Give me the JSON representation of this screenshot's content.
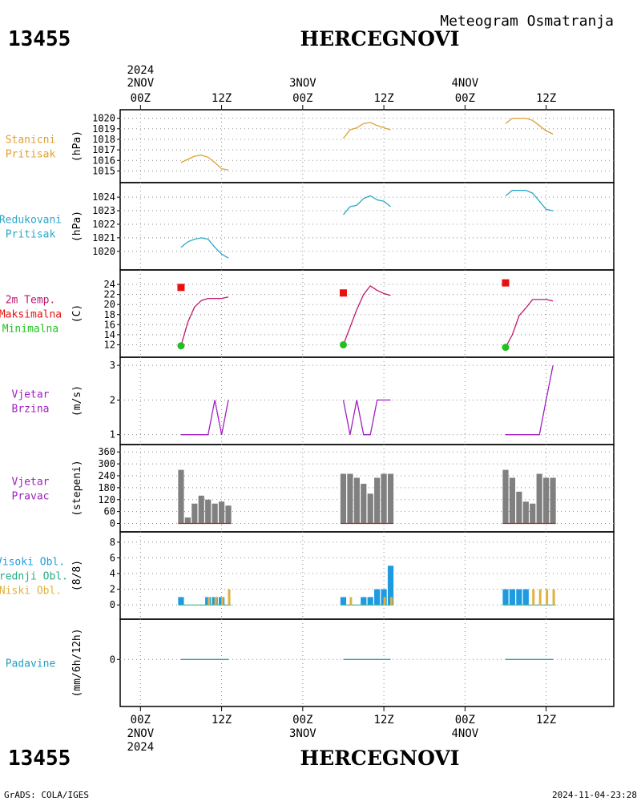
{
  "header": {
    "station_id": "13455",
    "station_name": "HERCEGNOVI",
    "subtitle": "Meteogram Osmatranja"
  },
  "top_axis": {
    "year": "2024",
    "ticks": [
      {
        "top": "2NOV",
        "bottom": "00Z",
        "t": 0
      },
      {
        "top": "",
        "bottom": "12Z",
        "t": 12
      },
      {
        "top": "3NOV",
        "bottom": "00Z",
        "t": 24
      },
      {
        "top": "",
        "bottom": "12Z",
        "t": 36
      },
      {
        "top": "4NOV",
        "bottom": "00Z",
        "t": 48
      },
      {
        "top": "",
        "bottom": "12Z",
        "t": 60
      }
    ]
  },
  "bottom_axis": {
    "year": "2024",
    "ticks": [
      {
        "top": "00Z",
        "bottom": "2NOV",
        "t": 0
      },
      {
        "top": "12Z",
        "bottom": "",
        "t": 12
      },
      {
        "top": "00Z",
        "bottom": "3NOV",
        "t": 24
      },
      {
        "top": "12Z",
        "bottom": "",
        "t": 36
      },
      {
        "top": "00Z",
        "bottom": "4NOV",
        "t": 48
      },
      {
        "top": "12Z",
        "bottom": "",
        "t": 60
      }
    ]
  },
  "footer": {
    "left": "GrADS: COLA/IGES",
    "right": "2024-11-04-23:28"
  },
  "colors": {
    "station_pressure": "#e0a030",
    "reduced_pressure": "#2aa8c8",
    "temp_line": "#c0186e",
    "temp_max": "#e81010",
    "temp_min": "#20c020",
    "wind": "#a020c0",
    "wind_dir_bars": "#808080",
    "wind_dir_baseline": "#c02020",
    "cloud_high": "#1e9be0",
    "cloud_mid": "#20b080",
    "cloud_low": "#e0b040",
    "precip": "#20a0c0"
  },
  "chart_data": {
    "type": "line",
    "x_unit": "hours since 2NOV 00Z",
    "xlim": [
      -3,
      70
    ],
    "panels": [
      {
        "id": "station_pressure",
        "labels": [
          {
            "text": "Stanicni",
            "color": "#e0a030"
          },
          {
            "text": "Pritisak",
            "color": "#e0a030"
          }
        ],
        "ylabel": "(hPa)",
        "ylim": [
          1014.5,
          1020.2
        ],
        "yticks": [
          1015,
          1016,
          1017,
          1018,
          1019,
          1020
        ],
        "series": [
          {
            "kind": "line",
            "x": [
              6,
              7,
              8,
              9,
              10,
              11,
              12,
              13
            ],
            "y": [
              1015.8,
              1016.1,
              1016.4,
              1016.5,
              1016.3,
              1015.8,
              1015.2,
              1015.1
            ]
          },
          {
            "kind": "line",
            "x": [
              30,
              31,
              32,
              33,
              34,
              35,
              36,
              37
            ],
            "y": [
              1018.1,
              1018.9,
              1019.1,
              1019.5,
              1019.6,
              1019.3,
              1019.1,
              1018.9
            ]
          },
          {
            "kind": "line",
            "x": [
              54,
              55,
              56,
              57,
              58,
              59,
              60,
              61
            ],
            "y": [
              1019.5,
              1020.0,
              1020.0,
              1020.0,
              1019.8,
              1019.3,
              1018.8,
              1018.5
            ]
          }
        ]
      },
      {
        "id": "reduced_pressure",
        "labels": [
          {
            "text": "Redukovani",
            "color": "#2aa8c8"
          },
          {
            "text": "Pritisak",
            "color": "#2aa8c8"
          }
        ],
        "ylabel": "(hPa)",
        "ylim": [
          1019.1,
          1024.6
        ],
        "yticks": [
          1020,
          1021,
          1022,
          1023,
          1024
        ],
        "series": [
          {
            "kind": "line",
            "x": [
              6,
              7,
              8,
              9,
              10,
              11,
              12,
              13
            ],
            "y": [
              1020.3,
              1020.7,
              1020.9,
              1021.0,
              1020.9,
              1020.3,
              1019.8,
              1019.5
            ]
          },
          {
            "kind": "line",
            "x": [
              30,
              31,
              32,
              33,
              34,
              35,
              36,
              37
            ],
            "y": [
              1022.7,
              1023.3,
              1023.4,
              1023.9,
              1024.1,
              1023.8,
              1023.7,
              1023.3
            ]
          },
          {
            "kind": "line",
            "x": [
              54,
              55,
              56,
              57,
              58,
              59,
              60,
              61
            ],
            "y": [
              1024.1,
              1024.5,
              1024.5,
              1024.5,
              1024.3,
              1023.7,
              1023.1,
              1023.0
            ]
          }
        ]
      },
      {
        "id": "temperature",
        "labels": [
          {
            "text": "2m Temp.",
            "color": "#c0186e"
          },
          {
            "text": "Maksimalna",
            "color": "#e81010"
          },
          {
            "text": "Minimalna",
            "color": "#20c020"
          }
        ],
        "ylabel": "(C)",
        "ylim": [
          10.8,
          25.6
        ],
        "yticks": [
          12,
          14,
          16,
          18,
          20,
          22,
          24
        ],
        "series": [
          {
            "kind": "line",
            "x": [
              6,
              7,
              8,
              9,
              10,
              11,
              12,
              13
            ],
            "y": [
              11.8,
              16.5,
              19.5,
              20.8,
              21.2,
              21.2,
              21.2,
              21.5
            ]
          },
          {
            "kind": "line",
            "x": [
              30,
              31,
              32,
              33,
              34,
              35,
              36,
              37
            ],
            "y": [
              12.0,
              15.5,
              19.0,
              22.0,
              23.7,
              22.8,
              22.2,
              21.8
            ]
          },
          {
            "kind": "line",
            "x": [
              54,
              55,
              56,
              57,
              58,
              59,
              60,
              61
            ],
            "y": [
              11.5,
              14.0,
              17.8,
              19.3,
              21.0,
              21.0,
              21.0,
              20.7
            ]
          },
          {
            "kind": "max",
            "x": [
              6,
              30,
              54
            ],
            "y": [
              23.4,
              22.3,
              24.3
            ]
          },
          {
            "kind": "min",
            "x": [
              6,
              30,
              54
            ],
            "y": [
              11.8,
              12.0,
              11.5
            ]
          }
        ]
      },
      {
        "id": "wind_speed",
        "labels": [
          {
            "text": "Vjetar",
            "color": "#a020c0"
          },
          {
            "text": "Brzina",
            "color": "#a020c0"
          }
        ],
        "ylabel": "(m/s)",
        "ylim": [
          0.9,
          3.05
        ],
        "yticks": [
          1,
          2,
          3
        ],
        "series": [
          {
            "kind": "line",
            "x": [
              6,
              7,
              8,
              9,
              10,
              11,
              12,
              13
            ],
            "y": [
              1,
              1,
              1,
              1,
              1,
              2,
              1,
              2
            ]
          },
          {
            "kind": "line",
            "x": [
              30,
              31,
              32,
              33,
              34,
              35,
              36,
              37
            ],
            "y": [
              2,
              1,
              2,
              1,
              1,
              2,
              2,
              2
            ]
          },
          {
            "kind": "line",
            "x": [
              54,
              55,
              56,
              57,
              58,
              59,
              60,
              61
            ],
            "y": [
              1,
              1,
              1,
              1,
              1,
              1,
              2,
              3
            ]
          }
        ]
      },
      {
        "id": "wind_direction",
        "labels": [
          {
            "text": "Vjetar",
            "color": "#a020c0"
          },
          {
            "text": "Pravac",
            "color": "#a020c0"
          }
        ],
        "ylabel": "(stepeni)",
        "ylim": [
          -10,
          365
        ],
        "yticks": [
          0,
          60,
          120,
          180,
          240,
          300,
          360
        ],
        "series": [
          {
            "kind": "bars",
            "x": [
              6,
              7,
              8,
              9,
              10,
              11,
              12,
              13
            ],
            "y": [
              270,
              30,
              100,
              140,
              120,
              100,
              110,
              90
            ]
          },
          {
            "kind": "bars",
            "x": [
              30,
              31,
              32,
              33,
              34,
              35,
              36,
              37
            ],
            "y": [
              250,
              250,
              230,
              200,
              150,
              230,
              250,
              250
            ]
          },
          {
            "kind": "bars",
            "x": [
              54,
              55,
              56,
              57,
              58,
              59,
              60,
              61
            ],
            "y": [
              270,
              230,
              160,
              110,
              100,
              250,
              230,
              230
            ]
          }
        ]
      },
      {
        "id": "clouds",
        "labels": [
          {
            "text": "Visoki Obl.",
            "color": "#1e9be0"
          },
          {
            "text": "Srednji Obl.",
            "color": "#20b080"
          },
          {
            "text": "Niski Obl.",
            "color": "#e0b040"
          }
        ],
        "ylabel": "(8/8)",
        "ylim": [
          -1,
          8.5
        ],
        "yticks": [
          0,
          2,
          4,
          6,
          8
        ],
        "series": [
          {
            "kind": "cloud_high",
            "x": [
              6,
              7,
              8,
              9,
              10,
              11,
              12,
              13,
              30,
              31,
              32,
              33,
              34,
              35,
              36,
              37,
              54,
              55,
              56,
              57,
              58,
              59,
              60,
              61
            ],
            "y": [
              1,
              0,
              0,
              0,
              1,
              1,
              1,
              0,
              1,
              0,
              0,
              1,
              1,
              2,
              2,
              5,
              2,
              2,
              2,
              2,
              0,
              0,
              0,
              0
            ]
          },
          {
            "kind": "cloud_low",
            "x": [
              6,
              7,
              8,
              9,
              10,
              11,
              12,
              13,
              30,
              31,
              32,
              33,
              34,
              35,
              36,
              37,
              54,
              55,
              56,
              57,
              58,
              59,
              60,
              61
            ],
            "y": [
              0,
              0,
              0,
              0,
              1,
              1,
              1,
              2,
              0,
              1,
              0,
              0,
              0,
              0,
              1,
              1,
              0,
              0,
              0,
              0,
              2,
              2,
              2,
              2
            ]
          }
        ]
      },
      {
        "id": "precipitation",
        "labels": [
          {
            "text": "Padavine",
            "color": "#20a0c0"
          }
        ],
        "ylabel": "(mm/6h/12h)",
        "ylim": [
          -6,
          5
        ],
        "yticks": [
          0
        ],
        "series": [
          {
            "kind": "line",
            "x": [
              6,
              13
            ],
            "y": [
              0,
              0
            ]
          },
          {
            "kind": "line",
            "x": [
              30,
              37
            ],
            "y": [
              0,
              0
            ]
          },
          {
            "kind": "line",
            "x": [
              54,
              61
            ],
            "y": [
              0,
              0
            ]
          }
        ]
      }
    ]
  }
}
